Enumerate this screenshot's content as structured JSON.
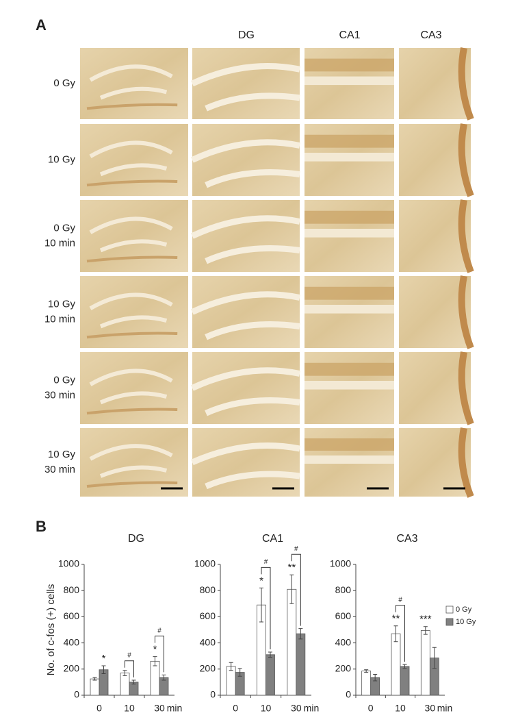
{
  "panel_a": {
    "label": "A",
    "columns": [
      "DG",
      "CA1",
      "CA3"
    ],
    "rows": [
      [
        "0 Gy"
      ],
      [
        "10 Gy"
      ],
      [
        "0 Gy",
        "10 min"
      ],
      [
        "10 Gy",
        "10 min"
      ],
      [
        "0 Gy",
        "30 min"
      ],
      [
        "10 Gy",
        "30 min"
      ]
    ]
  },
  "panel_b": {
    "label": "B"
  },
  "chart_data": [
    {
      "type": "bar",
      "title": "DG",
      "y_label": "No. of c-fos (+) cells",
      "categories": [
        "0",
        "10",
        "30"
      ],
      "x_unit": "min",
      "ylim": [
        0,
        1000
      ],
      "yticks": [
        0,
        200,
        400,
        600,
        800,
        1000
      ],
      "series": [
        {
          "name": "0 Gy",
          "color": "#ffffff",
          "values": [
            125,
            170,
            260
          ],
          "errors": [
            10,
            20,
            35
          ]
        },
        {
          "name": "10 Gy",
          "color": "#808080",
          "values": [
            195,
            100,
            135
          ],
          "errors": [
            30,
            15,
            20
          ]
        }
      ],
      "annotations": [
        {
          "text": "*",
          "category": 0,
          "series": 1
        },
        {
          "text": "#",
          "category": 1,
          "bracket": true
        },
        {
          "text": "*",
          "category": 2,
          "series": 0
        },
        {
          "text": "#",
          "category": 2,
          "bracket": true
        }
      ]
    },
    {
      "type": "bar",
      "title": "CA1",
      "categories": [
        "0",
        "10",
        "30"
      ],
      "x_unit": "min",
      "ylim": [
        0,
        1000
      ],
      "yticks": [
        0,
        200,
        400,
        600,
        800,
        1000
      ],
      "series": [
        {
          "name": "0 Gy",
          "color": "#ffffff",
          "values": [
            220,
            690,
            810
          ],
          "errors": [
            30,
            130,
            110
          ]
        },
        {
          "name": "10 Gy",
          "color": "#808080",
          "values": [
            175,
            310,
            470
          ],
          "errors": [
            30,
            20,
            40
          ]
        }
      ],
      "annotations": [
        {
          "text": "*",
          "category": 1,
          "series": 0
        },
        {
          "text": "#",
          "category": 1,
          "bracket": true
        },
        {
          "text": "**",
          "category": 2,
          "series": 0
        },
        {
          "text": "#",
          "category": 2,
          "bracket": true
        }
      ]
    },
    {
      "type": "bar",
      "title": "CA3",
      "categories": [
        "0",
        "10",
        "30"
      ],
      "x_unit": "min",
      "ylim": [
        0,
        1000
      ],
      "yticks": [
        0,
        200,
        400,
        600,
        800,
        1000
      ],
      "legend": "right",
      "series": [
        {
          "name": "0 Gy",
          "color": "#ffffff",
          "values": [
            185,
            470,
            495
          ],
          "errors": [
            10,
            60,
            30
          ]
        },
        {
          "name": "10 Gy",
          "color": "#808080",
          "values": [
            135,
            220,
            285
          ],
          "errors": [
            25,
            15,
            80
          ]
        }
      ],
      "annotations": [
        {
          "text": "**",
          "category": 1,
          "series": 0
        },
        {
          "text": "#",
          "category": 1,
          "bracket": true
        },
        {
          "text": "***",
          "category": 2,
          "series": 0
        }
      ]
    }
  ]
}
